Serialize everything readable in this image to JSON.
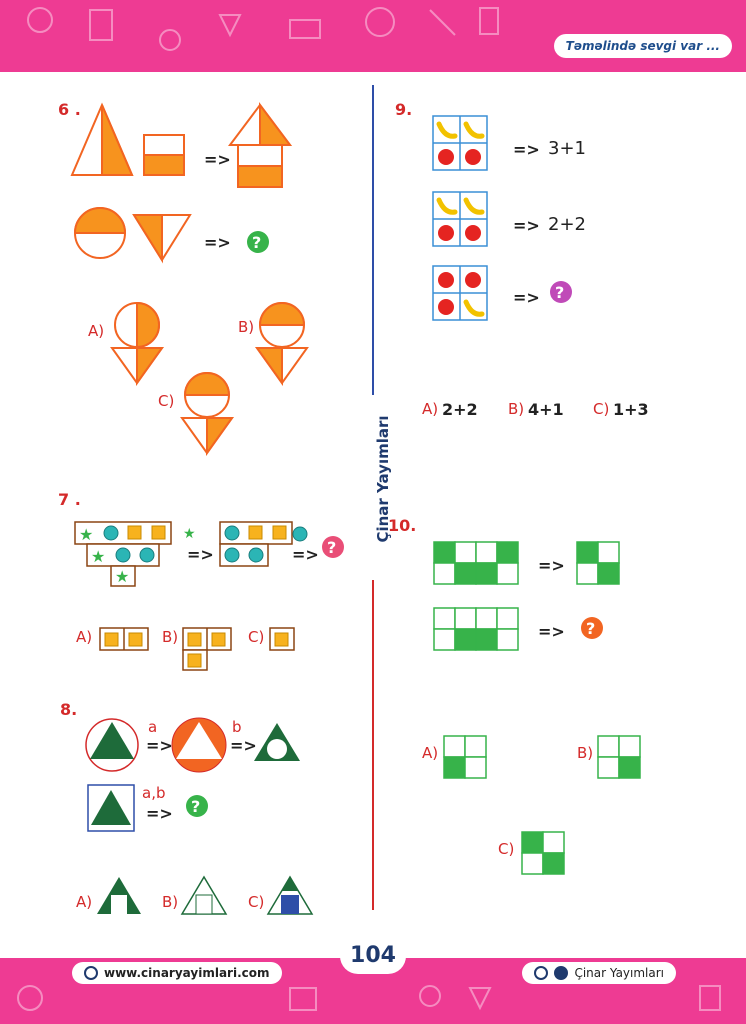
{
  "header": {
    "motto": "Təməlində sevgi var ..."
  },
  "footer": {
    "website": "www.cinaryayimlari.com",
    "social": "Çinar Yayımları",
    "page_number": "104"
  },
  "brand": {
    "vertical_text": "Çinar Yayımları"
  },
  "arrow": "=>",
  "colors": {
    "pink": "#ee3b93",
    "orange": "#f7931e",
    "red": "#d42a2a",
    "green": "#37b34a",
    "darkgreen": "#1e6b3a"
  },
  "q6": {
    "number": "6 .",
    "options": [
      "A)",
      "B)",
      "C)"
    ]
  },
  "q7": {
    "number": "7 .",
    "options": [
      "A)",
      "B)",
      "C)"
    ]
  },
  "q8": {
    "number": "8.",
    "labels": [
      "a",
      "b",
      "a,b"
    ],
    "options": [
      "A)",
      "B)",
      "C)"
    ]
  },
  "q9": {
    "number": "9.",
    "rows": [
      "3+1",
      "2+2"
    ],
    "answers": [
      {
        "label": "A)",
        "value": "2+2"
      },
      {
        "label": "B)",
        "value": "4+1"
      },
      {
        "label": "C)",
        "value": "1+3"
      }
    ]
  },
  "q10": {
    "number": "10.",
    "options": [
      "A)",
      "B)",
      "C)"
    ]
  }
}
